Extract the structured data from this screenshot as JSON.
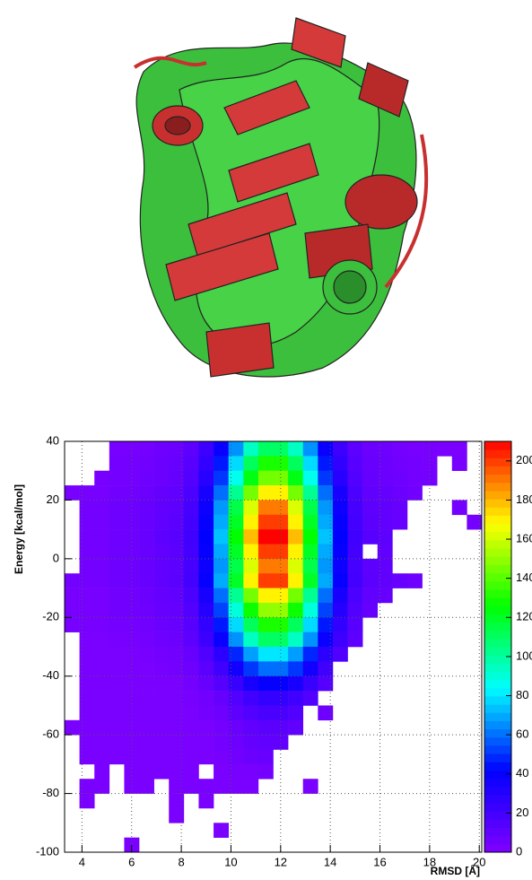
{
  "chart_data": {
    "type": "heatmap",
    "y_label": "Energy [kcal/mol]",
    "x_label": "RMSD [Å]",
    "xlim": [
      3.3,
      20.1
    ],
    "ylim": [
      -100,
      40
    ],
    "zlim": [
      0,
      210
    ],
    "xticks": [
      4,
      6,
      8,
      10,
      12,
      14,
      16,
      18,
      20
    ],
    "yticks": [
      -100,
      -80,
      -60,
      -40,
      -20,
      0,
      20,
      40
    ],
    "zticks": [
      0,
      20,
      40,
      60,
      80,
      100,
      120,
      140,
      160,
      180,
      200
    ],
    "grid": true,
    "colors": [
      "#8000ff",
      "#4000ff",
      "#0000ff",
      "#0080ff",
      "#00ffff",
      "#00ff80",
      "#00ff00",
      "#80ff00",
      "#ffff00",
      "#ff8000",
      "#ff0000"
    ],
    "xbins": [
      3.3,
      3.9,
      4.5,
      5.1,
      5.7,
      6.3,
      6.9,
      7.5,
      8.1,
      8.7,
      9.3,
      9.9,
      10.5,
      11.1,
      11.7,
      12.3,
      12.9,
      13.5,
      14.1,
      14.7,
      15.3,
      15.9,
      16.5,
      17.1,
      17.7,
      18.3,
      18.9,
      19.5,
      20.1
    ],
    "ybins": [
      40,
      35,
      30,
      25,
      20,
      15,
      10,
      5,
      0,
      -5,
      -10,
      -15,
      -20,
      -25,
      -30,
      -35,
      -40,
      -45,
      -50,
      -55,
      -60,
      -65,
      -70,
      -75,
      -80,
      -85,
      -90,
      -95,
      -100
    ],
    "values": [
      [
        0,
        0,
        0,
        3,
        3,
        4,
        6,
        7,
        11,
        22,
        39,
        66,
        94,
        110,
        110,
        94,
        66,
        39,
        22,
        11,
        7,
        6,
        4,
        3,
        3,
        2,
        2,
        0
      ],
      [
        0,
        0,
        0,
        4,
        4,
        5,
        7,
        8,
        13,
        26,
        46,
        78,
        111,
        130,
        130,
        111,
        78,
        46,
        26,
        13,
        8,
        7,
        5,
        4,
        3,
        0,
        3,
        0
      ],
      [
        0,
        0,
        3,
        4,
        4,
        6,
        7,
        9,
        15,
        29,
        51,
        87,
        123,
        145,
        145,
        123,
        87,
        51,
        29,
        15,
        9,
        7,
        6,
        4,
        4,
        0,
        0,
        0
      ],
      [
        3,
        3,
        3,
        5,
        5,
        7,
        9,
        10,
        17,
        34,
        60,
        102,
        145,
        170,
        170,
        145,
        102,
        60,
        34,
        17,
        10,
        9,
        7,
        5,
        0,
        0,
        0,
        0
      ],
      [
        0,
        4,
        4,
        6,
        6,
        8,
        10,
        11,
        19,
        38,
        67,
        114,
        162,
        190,
        190,
        162,
        114,
        67,
        38,
        19,
        11,
        10,
        8,
        0,
        0,
        0,
        4,
        0
      ],
      [
        0,
        4,
        4,
        6,
        6,
        8,
        10,
        12,
        20,
        40,
        70,
        120,
        170,
        200,
        200,
        170,
        120,
        70,
        40,
        20,
        12,
        10,
        8,
        0,
        0,
        0,
        0,
        4
      ],
      [
        0,
        4,
        4,
        6,
        6,
        8,
        11,
        13,
        21,
        42,
        74,
        126,
        179,
        210,
        210,
        179,
        126,
        74,
        42,
        21,
        13,
        11,
        0,
        0,
        0,
        0,
        0,
        0
      ],
      [
        0,
        4,
        4,
        6,
        6,
        8,
        10,
        12,
        20,
        40,
        70,
        120,
        170,
        200,
        200,
        170,
        120,
        70,
        40,
        20,
        0,
        10,
        0,
        0,
        0,
        0,
        0,
        0
      ],
      [
        0,
        4,
        4,
        6,
        6,
        8,
        10,
        11,
        19,
        38,
        67,
        114,
        162,
        190,
        190,
        162,
        114,
        67,
        38,
        19,
        11,
        10,
        0,
        0,
        0,
        0,
        0,
        0
      ],
      [
        4,
        4,
        4,
        6,
        6,
        8,
        10,
        12,
        20,
        40,
        70,
        120,
        170,
        200,
        200,
        170,
        120,
        70,
        40,
        20,
        12,
        10,
        8,
        6,
        0,
        0,
        0,
        0
      ],
      [
        3,
        3,
        3,
        5,
        5,
        7,
        9,
        10,
        17,
        34,
        60,
        102,
        145,
        170,
        170,
        145,
        102,
        60,
        34,
        17,
        10,
        9,
        0,
        0,
        0,
        0,
        0,
        0
      ],
      [
        3,
        3,
        3,
        5,
        5,
        6,
        8,
        9,
        15,
        30,
        53,
        90,
        128,
        150,
        150,
        128,
        90,
        53,
        30,
        15,
        9,
        0,
        0,
        0,
        0,
        0,
        0,
        0
      ],
      [
        3,
        3,
        3,
        4,
        4,
        5,
        7,
        8,
        13,
        26,
        46,
        78,
        111,
        130,
        130,
        111,
        78,
        46,
        26,
        13,
        0,
        0,
        0,
        0,
        0,
        0,
        0,
        0
      ],
      [
        0,
        2,
        2,
        3,
        3,
        4,
        6,
        7,
        11,
        22,
        39,
        66,
        94,
        110,
        110,
        94,
        66,
        39,
        22,
        11,
        0,
        0,
        0,
        0,
        0,
        0,
        0,
        0
      ],
      [
        0,
        2,
        2,
        2,
        2,
        3,
        4,
        5,
        8,
        16,
        28,
        48,
        68,
        80,
        80,
        68,
        48,
        28,
        16,
        0,
        0,
        0,
        0,
        0,
        0,
        0,
        0,
        0
      ],
      [
        0,
        2,
        2,
        2,
        2,
        2,
        3,
        4,
        6,
        12,
        21,
        36,
        51,
        60,
        60,
        51,
        36,
        21,
        0,
        0,
        0,
        0,
        0,
        0,
        0,
        0,
        0,
        0
      ],
      [
        0,
        2,
        2,
        2,
        2,
        2,
        2,
        2,
        4,
        8,
        14,
        24,
        34,
        40,
        40,
        34,
        24,
        14,
        0,
        0,
        0,
        0,
        0,
        0,
        0,
        0,
        0,
        0
      ],
      [
        0,
        2,
        2,
        2,
        2,
        2,
        2,
        2,
        3,
        5,
        9,
        15,
        21,
        25,
        25,
        21,
        15,
        0,
        0,
        0,
        0,
        0,
        0,
        0,
        0,
        0,
        0,
        0
      ],
      [
        0,
        2,
        2,
        2,
        2,
        2,
        2,
        2,
        2,
        4,
        6,
        11,
        15,
        18,
        18,
        15,
        0,
        6,
        0,
        0,
        0,
        0,
        0,
        0,
        0,
        0,
        0,
        0
      ],
      [
        2,
        2,
        2,
        2,
        2,
        2,
        2,
        2,
        2,
        2,
        4,
        7,
        10,
        12,
        12,
        10,
        0,
        0,
        0,
        0,
        0,
        0,
        0,
        0,
        0,
        0,
        0,
        0
      ],
      [
        0,
        2,
        2,
        2,
        2,
        2,
        2,
        2,
        2,
        2,
        4,
        6,
        9,
        10,
        10,
        0,
        0,
        0,
        0,
        0,
        0,
        0,
        0,
        0,
        0,
        0,
        0,
        0
      ],
      [
        0,
        2,
        2,
        2,
        2,
        2,
        2,
        2,
        2,
        2,
        3,
        5,
        7,
        8,
        0,
        0,
        0,
        0,
        0,
        0,
        0,
        0,
        0,
        0,
        0,
        0,
        0,
        0
      ],
      [
        0,
        0,
        2,
        0,
        2,
        2,
        2,
        2,
        2,
        0,
        2,
        3,
        3,
        4,
        0,
        0,
        0,
        0,
        0,
        0,
        0,
        0,
        0,
        0,
        0,
        0,
        0,
        0
      ],
      [
        0,
        2,
        2,
        0,
        2,
        2,
        0,
        2,
        2,
        2,
        2,
        2,
        2,
        0,
        0,
        0,
        2,
        0,
        0,
        0,
        0,
        0,
        0,
        0,
        0,
        0,
        0,
        0
      ],
      [
        0,
        2,
        0,
        0,
        0,
        0,
        0,
        2,
        0,
        2,
        0,
        0,
        0,
        0,
        0,
        0,
        0,
        0,
        0,
        0,
        0,
        0,
        0,
        0,
        0,
        0,
        0,
        0
      ],
      [
        0,
        0,
        0,
        0,
        0,
        0,
        0,
        2,
        0,
        0,
        0,
        0,
        0,
        0,
        0,
        0,
        0,
        0,
        0,
        0,
        0,
        0,
        0,
        0,
        0,
        0,
        0,
        0
      ],
      [
        0,
        0,
        0,
        0,
        0,
        0,
        0,
        0,
        0,
        0,
        2,
        0,
        0,
        0,
        0,
        0,
        0,
        0,
        0,
        0,
        0,
        0,
        0,
        0,
        0,
        0,
        0,
        0
      ],
      [
        0,
        0,
        0,
        0,
        2,
        0,
        0,
        0,
        0,
        0,
        0,
        0,
        0,
        0,
        0,
        0,
        0,
        0,
        0,
        0,
        0,
        0,
        0,
        0,
        0,
        0,
        0,
        0
      ]
    ]
  }
}
